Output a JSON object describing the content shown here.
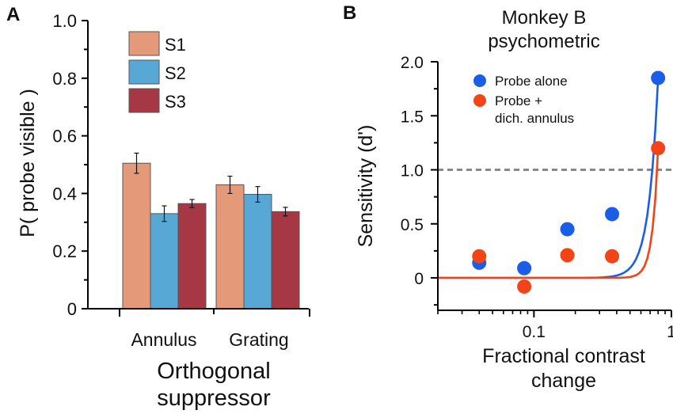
{
  "chart_data": [
    {
      "panel_label": "A",
      "type": "bar",
      "title": "",
      "ylabel": "P( probe visible )",
      "xlabel": "Orthogonal suppressor",
      "xlabel_lines": [
        "Orthogonal",
        "suppressor"
      ],
      "ylim": [
        0,
        1.0
      ],
      "yticks": [
        0,
        0.2,
        0.4,
        0.6,
        0.8,
        1.0
      ],
      "ytick_labels": [
        "0",
        "0.2",
        "0.4",
        "0.6",
        "0.8",
        "1.0"
      ],
      "categories": [
        "Annulus",
        "Grating"
      ],
      "series": [
        {
          "name": "S1",
          "color": "#e49a78",
          "values": [
            0.505,
            0.43
          ],
          "errors": [
            0.035,
            0.03
          ]
        },
        {
          "name": "S2",
          "color": "#58a8d6",
          "values": [
            0.33,
            0.397
          ],
          "errors": [
            0.027,
            0.027
          ]
        },
        {
          "name": "S3",
          "color": "#a53844",
          "values": [
            0.365,
            0.337
          ],
          "errors": [
            0.014,
            0.015
          ]
        }
      ],
      "legend": [
        "S1",
        "S2",
        "S3"
      ],
      "legend_position": "top-right"
    },
    {
      "panel_label": "B",
      "type": "scatter",
      "title": "Monkey B psychometric",
      "title_lines": [
        "Monkey B",
        "psychometric"
      ],
      "xlabel": "Fractional contrast change",
      "xlabel_lines": [
        "Fractional contrast",
        "change"
      ],
      "ylabel": "Sensitivity (d')",
      "xscale": "log",
      "xlim": [
        0.02,
        1
      ],
      "xtick_labels": [
        "0.1",
        "1"
      ],
      "ylim": [
        -0.3,
        2.0
      ],
      "yticks": [
        0,
        0.5,
        1.0,
        1.5,
        2.0
      ],
      "ytick_labels": [
        "0",
        "0.5",
        "1.0",
        "1.5",
        "2.0"
      ],
      "reference_line": {
        "y": 1.0,
        "style": "dashed",
        "color": "#888888"
      },
      "legend_position": "top-left",
      "series": [
        {
          "name": "Probe alone",
          "color": "#1a5ee8",
          "x": [
            0.04,
            0.085,
            0.175,
            0.37,
            0.8
          ],
          "y": [
            0.14,
            0.09,
            0.45,
            0.59,
            1.85
          ],
          "fit": {
            "threshold": 0.5,
            "k": 6.4
          }
        },
        {
          "name": "Probe + dich. annulus",
          "legend_lines": [
            "Probe +",
            "dich. annulus"
          ],
          "color": "#f24418",
          "x": [
            0.04,
            0.085,
            0.175,
            0.37,
            0.8
          ],
          "y": [
            0.2,
            -0.08,
            0.21,
            0.2,
            1.2
          ],
          "fit": {
            "threshold": 0.8,
            "k": 10.5
          }
        }
      ]
    }
  ]
}
